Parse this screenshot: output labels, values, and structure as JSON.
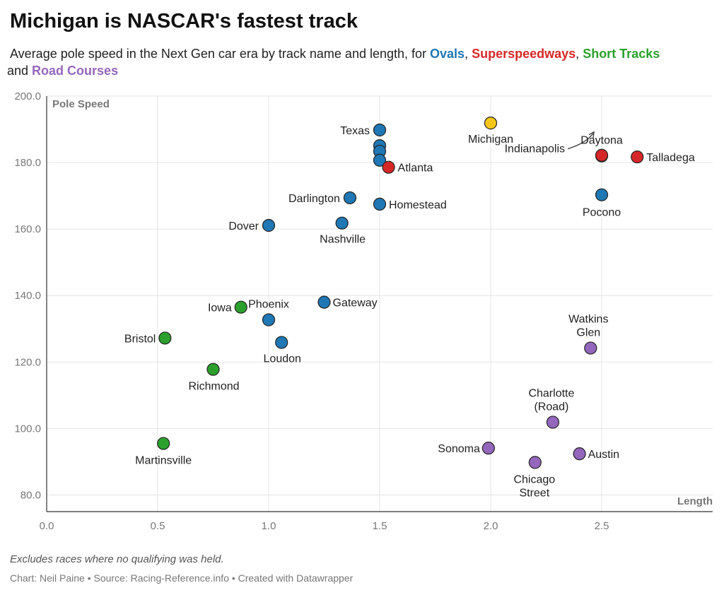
{
  "title": "Michigan is NASCAR's fastest track",
  "subtitle": {
    "prefix": "Average pole speed in the Next Gen car era by track name and length, for ",
    "ovals": "Ovals",
    "sep1": ", ",
    "superspeedways": "Superspeedways",
    "sep2": ", ",
    "short_tracks": "Short Tracks",
    "and": " and ",
    "road_courses": "Road Courses"
  },
  "note": "Excludes races where no qualifying was held.",
  "credit": "Chart: Neil Paine • Source: Racing-Reference.info • Created with Datawrapper",
  "chart_data": {
    "type": "scatter",
    "xlabel": "Length",
    "ylabel": "Pole Speed",
    "xlim": [
      0,
      3.0
    ],
    "ylim": [
      75,
      200
    ],
    "xticks": [
      "0.0",
      "0.5",
      "1.0",
      "1.5",
      "2.0",
      "2.5"
    ],
    "yticks": [
      "80.0",
      "100.0",
      "120.0",
      "140.0",
      "160.0",
      "180.0",
      "200.0"
    ],
    "grid": true,
    "colors": {
      "oval": "#1f77b4",
      "superspeedway": "#d62728",
      "short": "#2ca02c",
      "road": "#9467bd",
      "highlight": "#f5c518"
    },
    "points": [
      {
        "name": "Texas",
        "cat": "oval",
        "x": 1.5,
        "y": 189.8
      },
      {
        "name": "",
        "cat": "oval",
        "x": 1.5,
        "y": 185.1
      },
      {
        "name": "",
        "cat": "oval",
        "x": 1.5,
        "y": 183.4
      },
      {
        "name": "",
        "cat": "oval",
        "x": 1.5,
        "y": 180.7
      },
      {
        "name": "Atlanta",
        "cat": "superspeedway",
        "x": 1.54,
        "y": 178.6
      },
      {
        "name": "Michigan",
        "cat": "highlight",
        "x": 2.0,
        "y": 191.9
      },
      {
        "name": "Indianapolis",
        "cat": "oval",
        "x": 2.5,
        "y": 182.0
      },
      {
        "name": "Daytona",
        "cat": "superspeedway",
        "x": 2.5,
        "y": 182.2
      },
      {
        "name": "Talladega",
        "cat": "superspeedway",
        "x": 2.66,
        "y": 181.7
      },
      {
        "name": "Pocono",
        "cat": "oval",
        "x": 2.5,
        "y": 170.3
      },
      {
        "name": "Darlington",
        "cat": "oval",
        "x": 1.366,
        "y": 169.4
      },
      {
        "name": "Homestead",
        "cat": "oval",
        "x": 1.5,
        "y": 167.5
      },
      {
        "name": "Dover",
        "cat": "oval",
        "x": 1.0,
        "y": 161.1
      },
      {
        "name": "Nashville",
        "cat": "oval",
        "x": 1.33,
        "y": 161.8
      },
      {
        "name": "Gateway",
        "cat": "oval",
        "x": 1.25,
        "y": 138.0
      },
      {
        "name": "Iowa",
        "cat": "short",
        "x": 0.875,
        "y": 136.5
      },
      {
        "name": "Phoenix",
        "cat": "oval",
        "x": 1.0,
        "y": 132.7
      },
      {
        "name": "Loudon",
        "cat": "oval",
        "x": 1.058,
        "y": 125.9
      },
      {
        "name": "Bristol",
        "cat": "short",
        "x": 0.533,
        "y": 127.2
      },
      {
        "name": "Richmond",
        "cat": "short",
        "x": 0.75,
        "y": 117.8
      },
      {
        "name": "Martinsville",
        "cat": "short",
        "x": 0.526,
        "y": 95.5
      },
      {
        "name": "Watkins Glen",
        "cat": "road",
        "x": 2.45,
        "y": 124.2
      },
      {
        "name": "Charlotte (Road)",
        "cat": "road",
        "x": 2.28,
        "y": 101.9
      },
      {
        "name": "Sonoma",
        "cat": "road",
        "x": 1.99,
        "y": 94.1
      },
      {
        "name": "Austin",
        "cat": "road",
        "x": 2.4,
        "y": 92.4
      },
      {
        "name": "Chicago Street",
        "cat": "road",
        "x": 2.2,
        "y": 89.8
      }
    ]
  }
}
